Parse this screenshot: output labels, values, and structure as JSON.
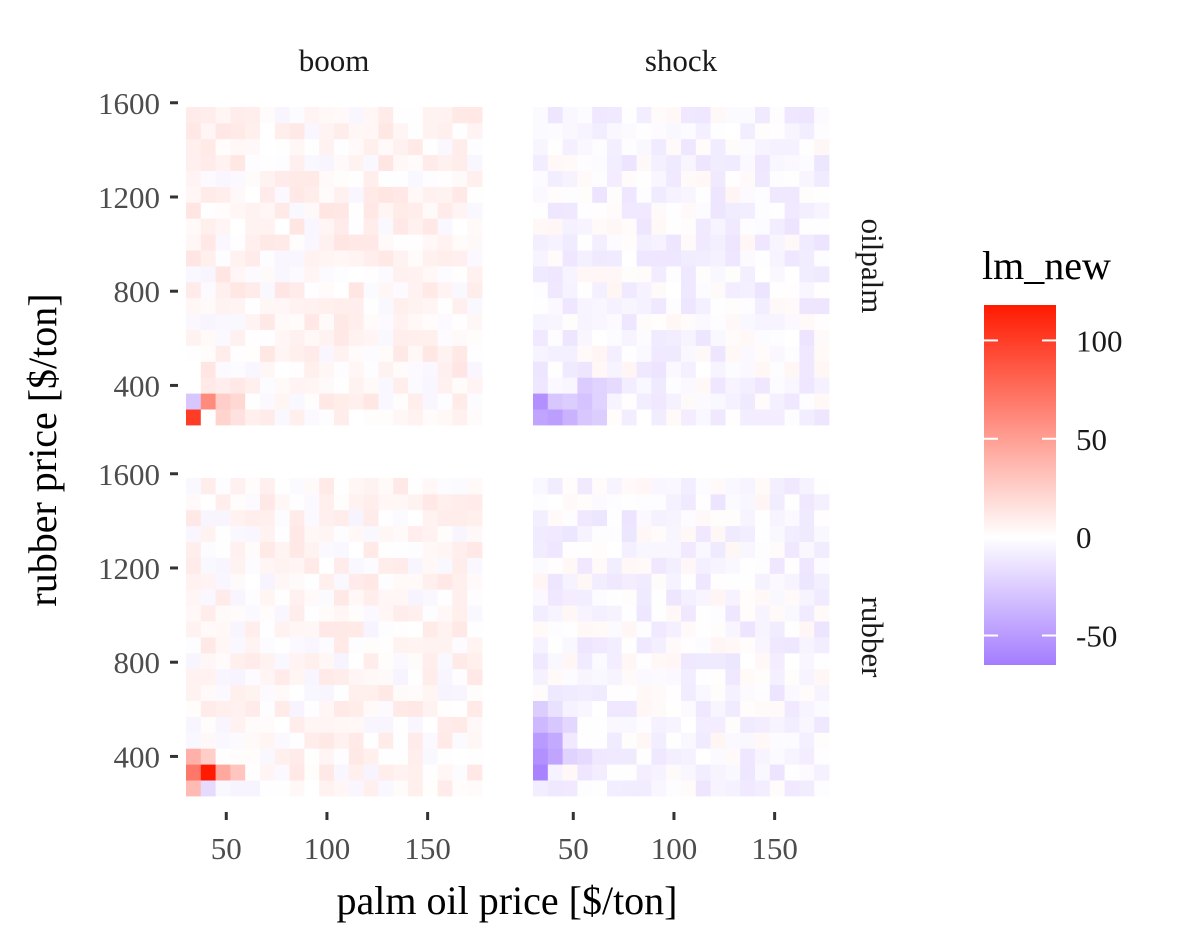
{
  "chart_data": {
    "type": "heatmap",
    "facet_columns": [
      "boom",
      "shock"
    ],
    "facet_rows": [
      "oilpalm",
      "rubber"
    ],
    "xlabel": "palm oil price [$/ton]",
    "ylabel": "rubber price [$/ton]",
    "x_ticks": [
      50,
      100,
      150
    ],
    "y_ticks": [
      400,
      800,
      1200,
      1600
    ],
    "xlim": [
      30,
      177
    ],
    "ylim": [
      232,
      1582
    ],
    "grid": {
      "nx": 20,
      "ny": 20,
      "x_start": 30,
      "x_step": 7.35,
      "y_start": 232,
      "y_step": 67.5
    },
    "legend": {
      "title": "lm_new",
      "position": "right",
      "range": [
        -65,
        118
      ],
      "ticks": [
        100,
        50,
        0,
        -50
      ],
      "colors": {
        "low": "#a47cff",
        "mid": "#ffffff",
        "high": "#ff1a00"
      }
    },
    "hotspots": [
      {
        "panel": "oilpalm-boom",
        "x": 33.7,
        "y": 266,
        "value": 100
      },
      {
        "panel": "oilpalm-boom",
        "x": 33.7,
        "y": 333,
        "value": -28
      },
      {
        "panel": "oilpalm-boom",
        "x": 41.0,
        "y": 333,
        "value": 60
      },
      {
        "panel": "oilpalm-boom",
        "x": 48.4,
        "y": 333,
        "value": 25
      },
      {
        "panel": "oilpalm-boom",
        "x": 48.4,
        "y": 266,
        "value": 22
      },
      {
        "panel": "oilpalm-boom",
        "x": 55.7,
        "y": 333,
        "value": 20
      },
      {
        "panel": "oilpalm-boom",
        "x": 55.7,
        "y": 266,
        "value": 15
      },
      {
        "panel": "oilpalm-shock",
        "x": 33.7,
        "y": 266,
        "value": -45
      },
      {
        "panel": "oilpalm-shock",
        "x": 41.0,
        "y": 266,
        "value": -48
      },
      {
        "panel": "oilpalm-shock",
        "x": 48.4,
        "y": 266,
        "value": -38
      },
      {
        "panel": "oilpalm-shock",
        "x": 33.7,
        "y": 333,
        "value": -55
      },
      {
        "panel": "oilpalm-shock",
        "x": 41.0,
        "y": 333,
        "value": -28
      },
      {
        "panel": "oilpalm-shock",
        "x": 48.4,
        "y": 333,
        "value": -25
      },
      {
        "panel": "oilpalm-shock",
        "x": 55.7,
        "y": 333,
        "value": -30
      },
      {
        "panel": "oilpalm-shock",
        "x": 63.1,
        "y": 333,
        "value": -22
      },
      {
        "panel": "oilpalm-shock",
        "x": 55.7,
        "y": 401,
        "value": -26
      },
      {
        "panel": "oilpalm-shock",
        "x": 63.1,
        "y": 401,
        "value": -22
      },
      {
        "panel": "oilpalm-shock",
        "x": 70.4,
        "y": 401,
        "value": -18
      },
      {
        "panel": "oilpalm-shock",
        "x": 55.7,
        "y": 266,
        "value": -28
      },
      {
        "panel": "oilpalm-shock",
        "x": 63.1,
        "y": 266,
        "value": -25
      },
      {
        "panel": "rubber-boom",
        "x": 33.7,
        "y": 266,
        "value": 35
      },
      {
        "panel": "rubber-boom",
        "x": 41.0,
        "y": 266,
        "value": -18
      },
      {
        "panel": "rubber-boom",
        "x": 33.7,
        "y": 333,
        "value": 70
      },
      {
        "panel": "rubber-boom",
        "x": 41.0,
        "y": 333,
        "value": 118
      },
      {
        "panel": "rubber-boom",
        "x": 48.4,
        "y": 333,
        "value": 45
      },
      {
        "panel": "rubber-boom",
        "x": 55.7,
        "y": 333,
        "value": 30
      },
      {
        "panel": "rubber-boom",
        "x": 33.7,
        "y": 401,
        "value": 40
      },
      {
        "panel": "rubber-boom",
        "x": 41.0,
        "y": 401,
        "value": 25
      },
      {
        "panel": "rubber-shock",
        "x": 33.7,
        "y": 333,
        "value": -62
      },
      {
        "panel": "rubber-shock",
        "x": 33.7,
        "y": 401,
        "value": -55
      },
      {
        "panel": "rubber-shock",
        "x": 41.0,
        "y": 401,
        "value": -45
      },
      {
        "panel": "rubber-shock",
        "x": 33.7,
        "y": 468,
        "value": -50
      },
      {
        "panel": "rubber-shock",
        "x": 41.0,
        "y": 468,
        "value": -42
      },
      {
        "panel": "rubber-shock",
        "x": 33.7,
        "y": 536,
        "value": -35
      },
      {
        "panel": "rubber-shock",
        "x": 41.0,
        "y": 536,
        "value": -28
      },
      {
        "panel": "rubber-shock",
        "x": 48.4,
        "y": 536,
        "value": -20
      },
      {
        "panel": "rubber-shock",
        "x": 33.7,
        "y": 603,
        "value": -25
      },
      {
        "panel": "rubber-shock",
        "x": 41.0,
        "y": 603,
        "value": -15
      },
      {
        "panel": "rubber-shock",
        "x": 48.4,
        "y": 401,
        "value": -22
      },
      {
        "panel": "rubber-shock",
        "x": 55.7,
        "y": 401,
        "value": -18
      }
    ],
    "background_noise": {
      "oilpalm-boom": {
        "bias": 4,
        "spread": 9,
        "seed": 11
      },
      "oilpalm-shock": {
        "bias": -4,
        "spread": 9,
        "seed": 23
      },
      "rubber-boom": {
        "bias": 3,
        "spread": 9,
        "seed": 37
      },
      "rubber-shock": {
        "bias": -4,
        "spread": 9,
        "seed": 53
      }
    }
  }
}
